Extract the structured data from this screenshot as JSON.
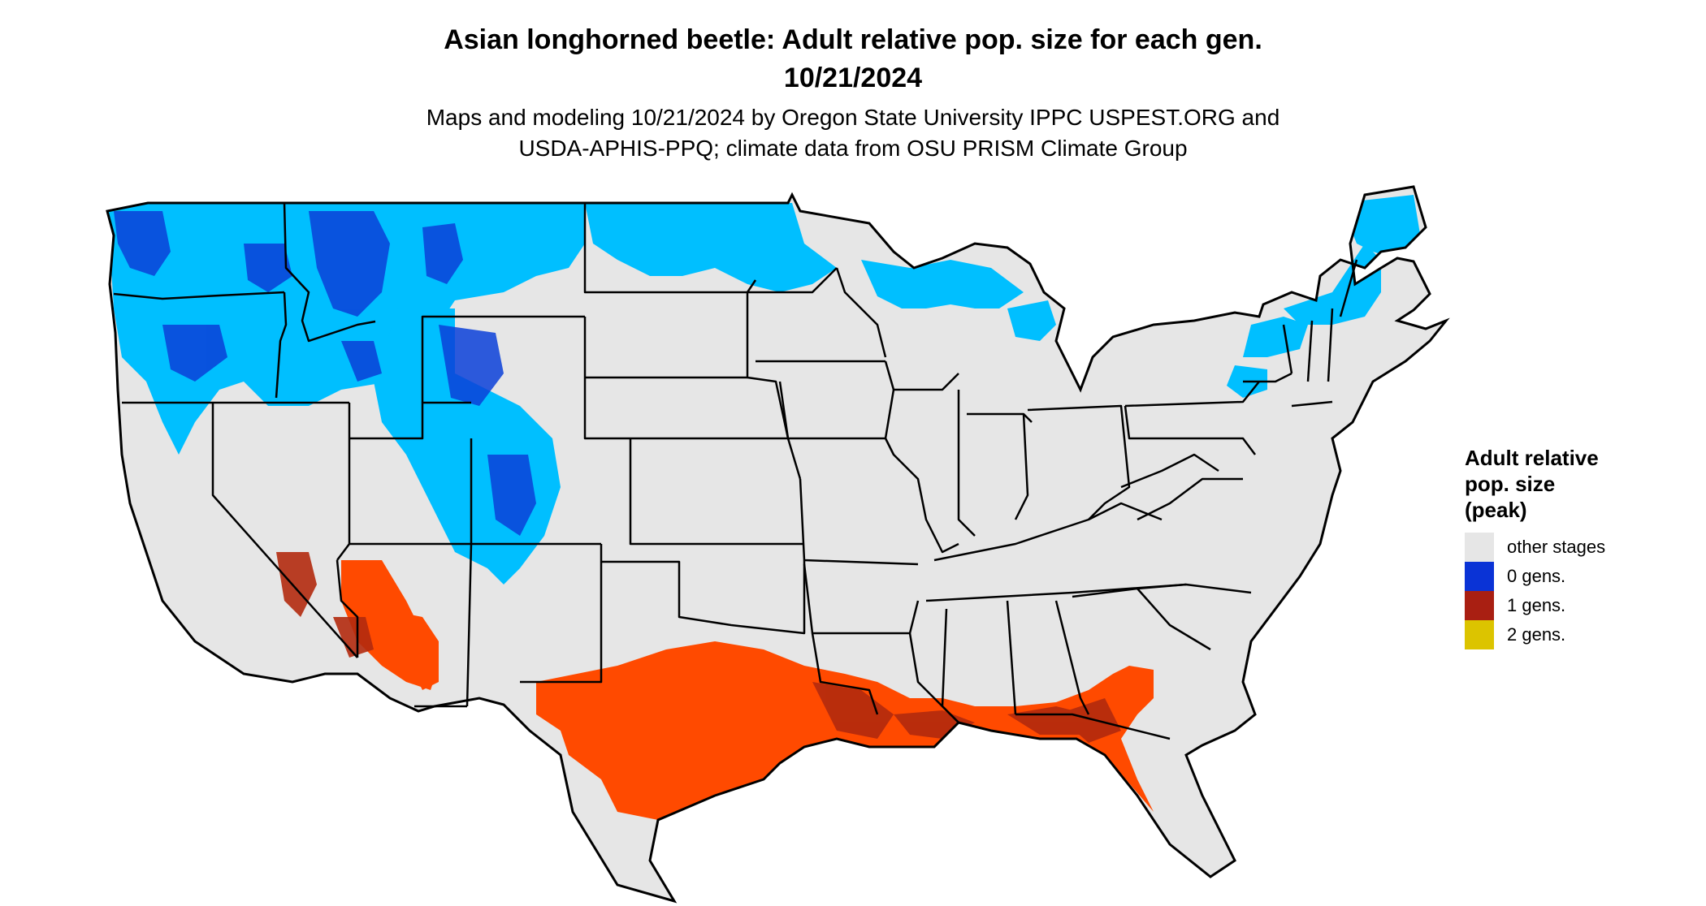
{
  "title": {
    "line1": "Asian longhorned beetle: Adult relative pop. size for each gen.",
    "line2": "10/21/2024"
  },
  "subtitle": {
    "line1": "Maps and modeling 10/21/2024 by Oregon State University IPPC USPEST.ORG and",
    "line2": "USDA-APHIS-PPQ; climate data from OSU PRISM Climate Group"
  },
  "colors": {
    "background": "#ffffff",
    "land": "#e6e6e6",
    "border": "#000000",
    "zero_gens_light": "#00bfff",
    "zero_gens_dark": "#0a3fd8",
    "one_gen_light": "#ff4a00",
    "one_gen_dark": "#b22a0e"
  },
  "legend": {
    "title_line1": "Adult relative",
    "title_line2": "pop. size",
    "title_line3": "(peak)",
    "items": [
      {
        "label": "other stages",
        "color": "#e6e6e6",
        "icon": "swatch-other-stages"
      },
      {
        "label": "0 gens.",
        "color": "#0a33d6",
        "icon": "swatch-0-gens"
      },
      {
        "label": "1 gens.",
        "color": "#a91f12",
        "icon": "swatch-1-gens"
      },
      {
        "label": "2 gens.",
        "color": "#dcc400",
        "icon": "swatch-2-gens"
      }
    ]
  }
}
